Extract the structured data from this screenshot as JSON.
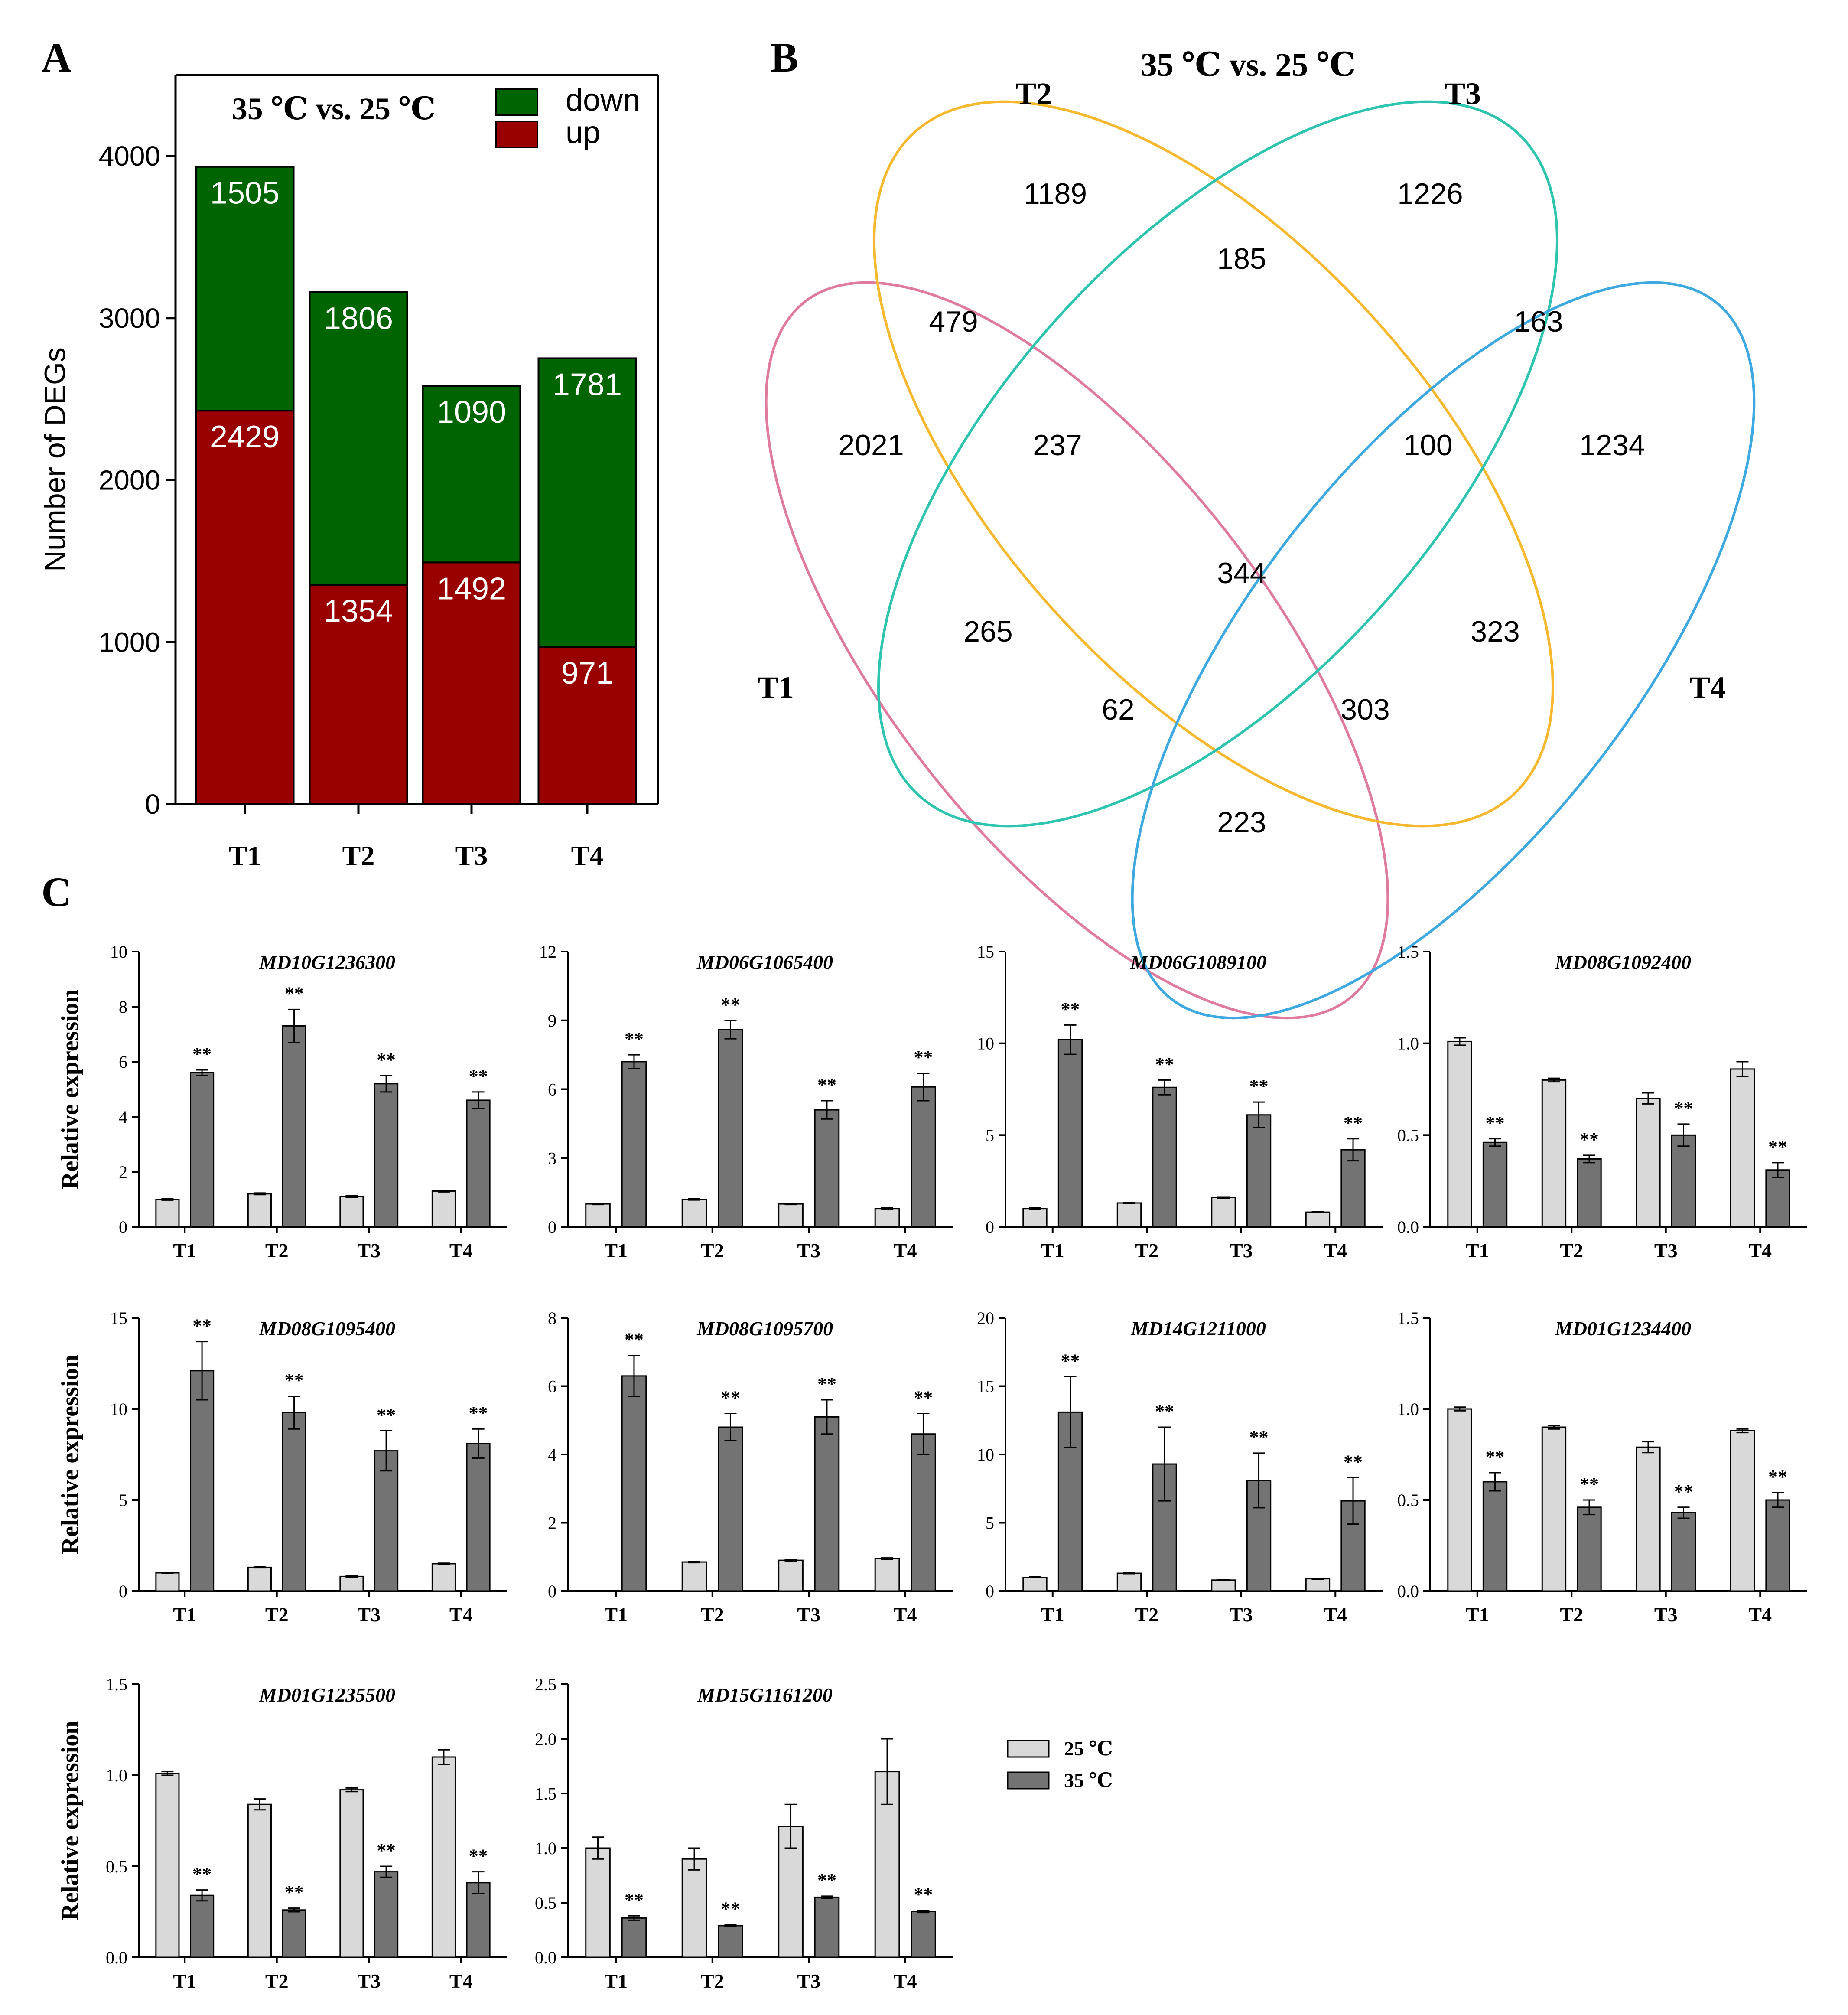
{
  "panel_a": {
    "letter": "A",
    "chart_data": {
      "type": "bar",
      "title": "35 ℃ vs. 25 ℃",
      "xlabel": "",
      "ylabel": "Number of DEGs",
      "categories": [
        "T1",
        "T2",
        "T3",
        "T4"
      ],
      "ylim": [
        0,
        4500
      ],
      "yticks": [
        0,
        1000,
        2000,
        3000,
        4000
      ],
      "stacked": true,
      "legend_position": "top-right",
      "series": [
        {
          "name": "up",
          "values": [
            2429,
            1354,
            1492,
            971
          ],
          "color": "#990000"
        },
        {
          "name": "down",
          "values": [
            1505,
            1806,
            1090,
            1781
          ],
          "color": "#006400"
        }
      ]
    }
  },
  "panel_b": {
    "letter": "B",
    "title": "35 ℃ vs. 25 ℃",
    "set_labels": [
      "T1",
      "T2",
      "T3",
      "T4"
    ],
    "set_colors": {
      "T1": "#e07ba0",
      "T2": "#f5b82e",
      "T3": "#2ec4b0",
      "T4": "#3ea8e0"
    },
    "regions": [
      {
        "sets": "T1",
        "value": 2021
      },
      {
        "sets": "T2",
        "value": 1189
      },
      {
        "sets": "T3",
        "value": 1226
      },
      {
        "sets": "T4",
        "value": 1234
      },
      {
        "sets": "T2∩T3",
        "value": 185
      },
      {
        "sets": "T1∩T2",
        "value": 479
      },
      {
        "sets": "T3∩T4",
        "value": 163
      },
      {
        "sets": "T1∩T2∩T3",
        "value": 237
      },
      {
        "sets": "T2∩T3∩T4",
        "value": 100
      },
      {
        "sets": "T1∩T2∩T3∩T4",
        "value": 344
      },
      {
        "sets": "T1∩T3",
        "value": 265
      },
      {
        "sets": "T2∩T4",
        "value": 323
      },
      {
        "sets": "T1∩T3∩T4",
        "value": 62
      },
      {
        "sets": "T1∩T2∩T4",
        "value": 303
      },
      {
        "sets": "T1∩T4",
        "value": 223
      }
    ]
  },
  "panel_c": {
    "letter": "C",
    "ylabel": "Relative expression",
    "legend": [
      {
        "name": "25 ℃",
        "color": "#d9d9d9"
      },
      {
        "name": "35 ℃",
        "color": "#737373"
      }
    ],
    "significance": "**",
    "chart_data": [
      {
        "type": "bar",
        "title": "MD10G1236300",
        "categories": [
          "T1",
          "T2",
          "T3",
          "T4"
        ],
        "ylim": [
          0,
          10
        ],
        "yticks": [
          "0",
          "2",
          "4",
          "6",
          "8",
          "10"
        ],
        "series": [
          {
            "name": "25 ℃",
            "values": [
              1.0,
              1.2,
              1.1,
              1.3
            ],
            "errors": [
              0.03,
              0.03,
              0.03,
              0.03
            ]
          },
          {
            "name": "35 ℃",
            "values": [
              5.6,
              7.3,
              5.2,
              4.6
            ],
            "errors": [
              0.1,
              0.6,
              0.3,
              0.3
            ]
          }
        ]
      },
      {
        "type": "bar",
        "title": "MD06G1065400",
        "categories": [
          "T1",
          "T2",
          "T3",
          "T4"
        ],
        "ylim": [
          0,
          12
        ],
        "yticks": [
          "0",
          "3",
          "6",
          "9",
          "12"
        ],
        "series": [
          {
            "name": "25 ℃",
            "values": [
              1.0,
              1.2,
              1.0,
              0.8
            ],
            "errors": [
              0.03,
              0.03,
              0.03,
              0.03
            ]
          },
          {
            "name": "35 ℃",
            "values": [
              7.2,
              8.6,
              5.1,
              6.1
            ],
            "errors": [
              0.3,
              0.4,
              0.4,
              0.6
            ]
          }
        ]
      },
      {
        "type": "bar",
        "title": "MD06G1089100",
        "categories": [
          "T1",
          "T2",
          "T3",
          "T4"
        ],
        "ylim": [
          0,
          15
        ],
        "yticks": [
          "0",
          "5",
          "10",
          "15"
        ],
        "series": [
          {
            "name": "25 ℃",
            "values": [
              1.0,
              1.3,
              1.6,
              0.8
            ],
            "errors": [
              0.03,
              0.03,
              0.03,
              0.03
            ]
          },
          {
            "name": "35 ℃",
            "values": [
              10.2,
              7.6,
              6.1,
              4.2
            ],
            "errors": [
              0.8,
              0.4,
              0.7,
              0.6
            ]
          }
        ]
      },
      {
        "type": "bar",
        "title": "MD08G1092400",
        "categories": [
          "T1",
          "T2",
          "T3",
          "T4"
        ],
        "ylim": [
          0,
          1.5
        ],
        "yticks": [
          "0.0",
          "0.5",
          "1.0",
          "1.5"
        ],
        "series": [
          {
            "name": "25 ℃",
            "values": [
              1.01,
              0.8,
              0.7,
              0.86
            ],
            "errors": [
              0.02,
              0.01,
              0.03,
              0.04
            ]
          },
          {
            "name": "35 ℃",
            "values": [
              0.46,
              0.37,
              0.5,
              0.31
            ],
            "errors": [
              0.02,
              0.02,
              0.06,
              0.04
            ]
          }
        ]
      },
      {
        "type": "bar",
        "title": "MD08G1095400",
        "categories": [
          "T1",
          "T2",
          "T3",
          "T4"
        ],
        "ylim": [
          0,
          15
        ],
        "yticks": [
          "0",
          "5",
          "10",
          "15"
        ],
        "series": [
          {
            "name": "25 ℃",
            "values": [
              1.0,
              1.3,
              0.8,
              1.5
            ],
            "errors": [
              0.03,
              0.03,
              0.03,
              0.03
            ]
          },
          {
            "name": "35 ℃",
            "values": [
              12.1,
              9.8,
              7.7,
              8.1
            ],
            "errors": [
              1.6,
              0.9,
              1.1,
              0.8
            ]
          }
        ]
      },
      {
        "type": "bar",
        "title": "MD08G1095700",
        "categories": [
          "T1",
          "T2",
          "T3",
          "T4"
        ],
        "ylim": [
          0,
          8
        ],
        "yticks": [
          "0",
          "2",
          "4",
          "6",
          "8"
        ],
        "series": [
          {
            "name": "25 ℃",
            "values": [
              0,
              0.85,
              0.9,
              0.95
            ],
            "errors": [
              0,
              0.02,
              0.02,
              0.02
            ]
          },
          {
            "name": "35 ℃",
            "values": [
              6.3,
              4.8,
              5.1,
              4.6
            ],
            "errors": [
              0.6,
              0.4,
              0.5,
              0.6
            ]
          }
        ]
      },
      {
        "type": "bar",
        "title": "MD14G1211000",
        "categories": [
          "T1",
          "T2",
          "T3",
          "T4"
        ],
        "ylim": [
          0,
          20
        ],
        "yticks": [
          "0",
          "5",
          "10",
          "15",
          "20"
        ],
        "series": [
          {
            "name": "25 ℃",
            "values": [
              1.0,
              1.3,
              0.8,
              0.9
            ],
            "errors": [
              0.03,
              0.03,
              0.03,
              0.03
            ]
          },
          {
            "name": "35 ℃",
            "values": [
              13.1,
              9.3,
              8.1,
              6.6
            ],
            "errors": [
              2.6,
              2.7,
              2.0,
              1.7
            ]
          }
        ]
      },
      {
        "type": "bar",
        "title": "MD01G1234400",
        "categories": [
          "T1",
          "T2",
          "T3",
          "T4"
        ],
        "ylim": [
          0,
          1.5
        ],
        "yticks": [
          "0.0",
          "0.5",
          "1.0",
          "1.5"
        ],
        "series": [
          {
            "name": "25 ℃",
            "values": [
              1.0,
              0.9,
              0.79,
              0.88
            ],
            "errors": [
              0.01,
              0.01,
              0.03,
              0.01
            ]
          },
          {
            "name": "35 ℃",
            "values": [
              0.6,
              0.46,
              0.43,
              0.5
            ],
            "errors": [
              0.05,
              0.04,
              0.03,
              0.04
            ]
          }
        ]
      },
      {
        "type": "bar",
        "title": "MD01G1235500",
        "categories": [
          "T1",
          "T2",
          "T3",
          "T4"
        ],
        "ylim": [
          0,
          1.5
        ],
        "yticks": [
          "0.0",
          "0.5",
          "1.0",
          "1.5"
        ],
        "series": [
          {
            "name": "25 ℃",
            "values": [
              1.01,
              0.84,
              0.92,
              1.1
            ],
            "errors": [
              0.01,
              0.03,
              0.01,
              0.04
            ]
          },
          {
            "name": "35 ℃",
            "values": [
              0.34,
              0.26,
              0.47,
              0.41
            ],
            "errors": [
              0.03,
              0.01,
              0.03,
              0.06
            ]
          }
        ]
      },
      {
        "type": "bar",
        "title": "MD15G1161200",
        "categories": [
          "T1",
          "T2",
          "T3",
          "T4"
        ],
        "ylim": [
          0,
          2.5
        ],
        "yticks": [
          "0.0",
          "0.5",
          "1.0",
          "1.5",
          "2.0",
          "2.5"
        ],
        "series": [
          {
            "name": "25 ℃",
            "values": [
              1.0,
              0.9,
              1.2,
              1.7
            ],
            "errors": [
              0.1,
              0.1,
              0.2,
              0.3
            ]
          },
          {
            "name": "35 ℃",
            "values": [
              0.36,
              0.29,
              0.55,
              0.42
            ],
            "errors": [
              0.02,
              0.01,
              0.01,
              0.01
            ]
          }
        ]
      }
    ]
  }
}
